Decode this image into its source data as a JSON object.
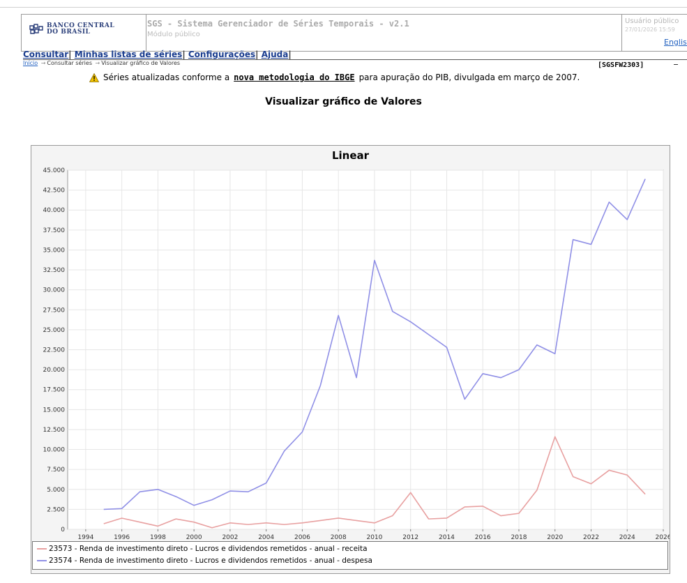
{
  "header": {
    "logo_lines": [
      "BANCO CENTRAL",
      "DO BRASIL"
    ],
    "app_title": "SGS - Sistema Gerenciador de Séries Temporais - v2.1",
    "app_subtitle": "Módulo público",
    "user_label": "Usuário público",
    "user_datetime": "27/01/2026 15:59",
    "language_link": "English"
  },
  "menu": {
    "items": [
      "Consultar",
      "Minhas listas de séries",
      "Configurações",
      "Ajuda"
    ]
  },
  "breadcrumb": {
    "items": [
      "Início",
      "Consultar séries",
      "Visualizar gráfico de Valores"
    ]
  },
  "page_code": "[SGSFW2303]",
  "notice": {
    "before": "Séries atualizadas conforme a",
    "link": "nova metodologia do IBGE",
    "after": "para apuração do PIB, divulgada em março de 2007."
  },
  "page_title": "Visualizar gráfico de Valores",
  "colors": {
    "series_receita": "#e8a0a0",
    "series_despesa": "#8f8fe6",
    "link": "#1a3d8f"
  },
  "chart_data": {
    "type": "line",
    "title": "Linear",
    "xlabel": "",
    "ylabel": "",
    "xlim": [
      1993,
      2026
    ],
    "ylim": [
      0,
      45000
    ],
    "x_ticks": [
      "1994",
      "1996",
      "1998",
      "2000",
      "2002",
      "2004",
      "2006",
      "2008",
      "2010",
      "2012",
      "2014",
      "2016",
      "2018",
      "2020",
      "2022",
      "2024",
      "2026"
    ],
    "y_ticks": [
      "0",
      "2.500",
      "5.000",
      "7.500",
      "10.000",
      "12.500",
      "15.000",
      "17.500",
      "20.000",
      "22.500",
      "25.000",
      "27.500",
      "30.000",
      "32.500",
      "35.000",
      "37.500",
      "40.000",
      "42.500",
      "45.000"
    ],
    "grid": true,
    "legend_position": "bottom",
    "x": [
      1995,
      1996,
      1997,
      1998,
      1999,
      2000,
      2001,
      2002,
      2003,
      2004,
      2005,
      2006,
      2007,
      2008,
      2009,
      2010,
      2011,
      2012,
      2013,
      2014,
      2015,
      2016,
      2017,
      2018,
      2019,
      2020,
      2021,
      2022,
      2023,
      2024,
      2025
    ],
    "series": [
      {
        "name": "23573 - Renda de investimento direto - Lucros e dividendos remetidos - anual - receita",
        "values": [
          700,
          1400,
          900,
          400,
          1300,
          900,
          200,
          800,
          600,
          800,
          600,
          800,
          1100,
          1400,
          1100,
          800,
          1700,
          4600,
          1300,
          1400,
          2800,
          2900,
          1700,
          2000,
          4900,
          11600,
          6600,
          5700,
          7400,
          6800,
          4400
        ]
      },
      {
        "name": "23574 - Renda de investimento direto - Lucros e dividendos remetidos - anual - despesa",
        "values": [
          2500,
          2600,
          4700,
          5000,
          4100,
          3000,
          3700,
          4800,
          4700,
          5800,
          9800,
          12200,
          18000,
          26800,
          19000,
          33700,
          27300,
          26000,
          24400,
          22800,
          16300,
          19500,
          19000,
          20000,
          23100,
          22000,
          36300,
          35700,
          41000,
          38800,
          43900
        ]
      }
    ]
  }
}
